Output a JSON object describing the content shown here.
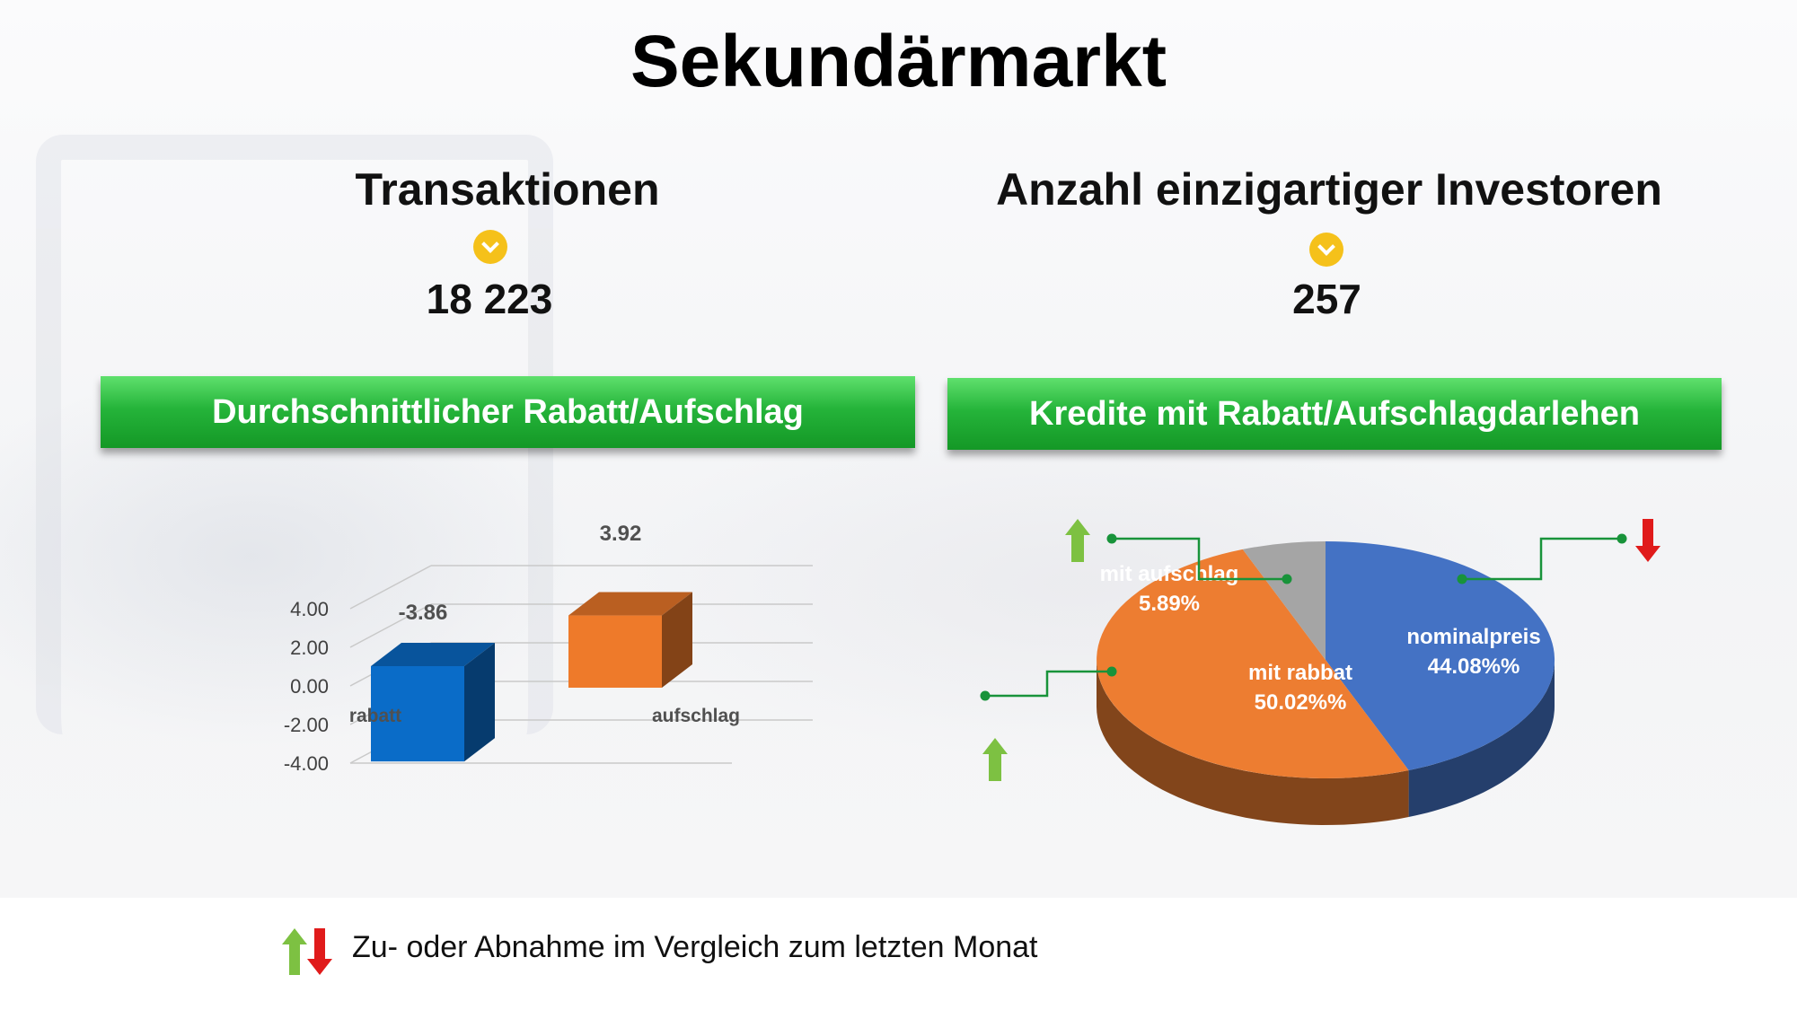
{
  "page": {
    "title": "Sekundärmarkt",
    "legend_note": "Zu- oder Abnahme im Vergleich zum letzten Monat"
  },
  "kpis": [
    {
      "label": "Transaktionen",
      "value": "18 223",
      "icon": "chevron-down-circle-icon",
      "color": "#F5C11A"
    },
    {
      "label": "Anzahl einzigartiger Investoren",
      "value": "257",
      "icon": "chevron-down-circle-icon",
      "color": "#F5C11A"
    }
  ],
  "banners": [
    {
      "label": "Durchschnittlicher Rabatt/Aufschlag"
    },
    {
      "label": "Kredite mit Rabatt/Aufschlagdarlehen"
    }
  ],
  "colors": {
    "banner_green": "#1FAE32",
    "up_arrow": "#7DC142",
    "down_arrow": "#E01B1B"
  },
  "chart_data": [
    {
      "type": "bar",
      "title": "Durchschnittlicher Rabatt/Aufschlag",
      "categories": [
        "rabatt",
        "aufschlag"
      ],
      "values": [
        -3.86,
        3.92
      ],
      "data_labels": [
        "-3.86",
        "3.92"
      ],
      "colors": [
        "#0A6CC8",
        "#EE7A2A"
      ],
      "ylim": [
        -4,
        4
      ],
      "yticks": [
        "4.00",
        "2.00",
        "0.00",
        "-2.00",
        "-4.00"
      ],
      "style": "3d-column"
    },
    {
      "type": "pie",
      "title": "Kredite mit Rabatt/Aufschlagdarlehen",
      "slices": [
        {
          "name": "nominalpreis",
          "value": 44.08,
          "label": "44.08%%",
          "color": "#4472C4",
          "trend": "down"
        },
        {
          "name": "mit rabbat",
          "value": 50.02,
          "label": "50.02%%",
          "color": "#ED7D31",
          "trend": "up"
        },
        {
          "name": "mit aufschlag",
          "value": 5.89,
          "label": "5.89%",
          "color": "#A5A5A5",
          "trend": "up"
        }
      ],
      "style": "3d-pie"
    }
  ]
}
